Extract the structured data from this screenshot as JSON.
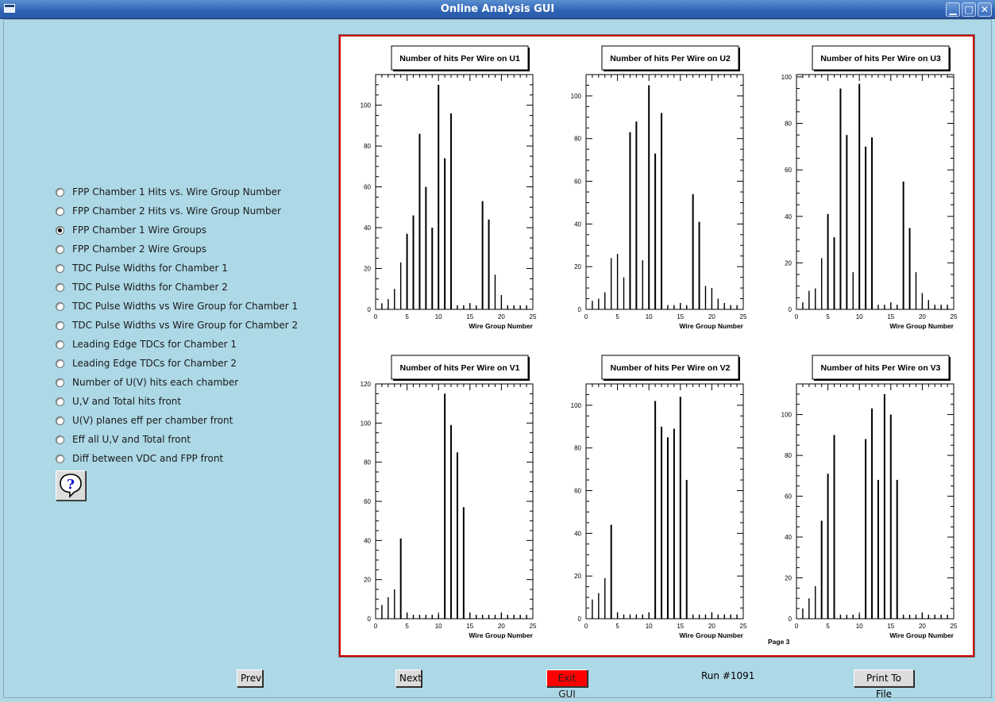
{
  "window": {
    "title": "Online Analysis GUI",
    "controls": {
      "minimize": "▁",
      "maximize": "□",
      "close": "✕"
    }
  },
  "options": [
    {
      "label": "FPP Chamber 1 Hits vs. Wire Group Number",
      "checked": false
    },
    {
      "label": "FPP Chamber 2 Hits vs. Wire Group Number",
      "checked": false
    },
    {
      "label": "FPP Chamber 1 Wire Groups",
      "checked": true
    },
    {
      "label": "FPP Chamber 2 Wire Groups",
      "checked": false
    },
    {
      "label": "TDC Pulse Widths for Chamber 1",
      "checked": false
    },
    {
      "label": "TDC Pulse Widths for Chamber 2",
      "checked": false
    },
    {
      "label": "TDC Pulse Widths vs Wire Group for Chamber 1",
      "checked": false
    },
    {
      "label": "TDC Pulse Widths vs Wire Group for Chamber 2",
      "checked": false
    },
    {
      "label": "Leading Edge TDCs for Chamber 1",
      "checked": false
    },
    {
      "label": "Leading Edge TDCs for Chamber 2",
      "checked": false
    },
    {
      "label": "Number of U(V) hits each chamber",
      "checked": false
    },
    {
      "label": "U,V and Total hits front",
      "checked": false
    },
    {
      "label": "U(V) planes eff per chamber front",
      "checked": false
    },
    {
      "label": "Eff all U,V and Total front",
      "checked": false
    },
    {
      "label": "Diff between VDC and FPP front",
      "checked": false
    }
  ],
  "help": {
    "icon": "help-question-icon",
    "glyph": "?"
  },
  "canvas": {
    "page_label": "Page 3"
  },
  "chart_data": [
    {
      "type": "bar",
      "title": "Number of hits Per Wire on U1",
      "xlabel": "Wire Group Number",
      "xlim": [
        0,
        25
      ],
      "ylim": [
        0,
        115
      ],
      "xticks": [
        0,
        5,
        10,
        15,
        20,
        25
      ],
      "yticks": [
        0,
        20,
        40,
        60,
        80,
        100
      ],
      "x": [
        1,
        2,
        3,
        4,
        5,
        6,
        7,
        8,
        9,
        10,
        11,
        12,
        13,
        14,
        15,
        16,
        17,
        18,
        19,
        20,
        21,
        22,
        23,
        24
      ],
      "values": [
        3,
        5,
        10,
        23,
        37,
        46,
        86,
        60,
        40,
        110,
        74,
        96,
        2,
        2,
        3,
        2,
        53,
        44,
        17,
        7,
        2,
        2,
        2,
        2
      ]
    },
    {
      "type": "bar",
      "title": "Number of hits Per Wire on U2",
      "xlabel": "Wire Group Number",
      "xlim": [
        0,
        25
      ],
      "ylim": [
        0,
        110
      ],
      "xticks": [
        0,
        5,
        10,
        15,
        20,
        25
      ],
      "yticks": [
        0,
        20,
        40,
        60,
        80,
        100
      ],
      "x": [
        1,
        2,
        3,
        4,
        5,
        6,
        7,
        8,
        9,
        10,
        11,
        12,
        13,
        14,
        15,
        16,
        17,
        18,
        19,
        20,
        21,
        22,
        23,
        24
      ],
      "values": [
        4,
        5,
        8,
        24,
        26,
        15,
        83,
        88,
        23,
        105,
        73,
        92,
        2,
        2,
        3,
        2,
        54,
        41,
        11,
        10,
        5,
        3,
        2,
        2
      ]
    },
    {
      "type": "bar",
      "title": "Number of hits Per Wire on U3",
      "xlabel": "Wire Group Number",
      "xlim": [
        0,
        25
      ],
      "ylim": [
        0,
        101
      ],
      "xticks": [
        0,
        5,
        10,
        15,
        20,
        25
      ],
      "yticks": [
        0,
        20,
        40,
        60,
        80,
        100
      ],
      "x": [
        1,
        2,
        3,
        4,
        5,
        6,
        7,
        8,
        9,
        10,
        11,
        12,
        13,
        14,
        15,
        16,
        17,
        18,
        19,
        20,
        21,
        22,
        23,
        24
      ],
      "values": [
        3,
        8,
        9,
        22,
        41,
        31,
        95,
        75,
        16,
        97,
        70,
        74,
        2,
        2,
        3,
        2,
        55,
        35,
        16,
        7,
        4,
        2,
        2,
        2
      ]
    },
    {
      "type": "bar",
      "title": "Number of hits Per Wire on V1",
      "xlabel": "Wire Group Number",
      "xlim": [
        0,
        25
      ],
      "ylim": [
        0,
        120
      ],
      "xticks": [
        0,
        5,
        10,
        15,
        20,
        25
      ],
      "yticks": [
        0,
        20,
        40,
        60,
        80,
        100,
        120
      ],
      "x": [
        1,
        2,
        3,
        4,
        5,
        6,
        7,
        8,
        9,
        10,
        11,
        12,
        13,
        14,
        15,
        16,
        17,
        18,
        19,
        20,
        21,
        22,
        23,
        24
      ],
      "values": [
        7,
        11,
        15,
        41,
        3,
        2,
        2,
        2,
        2,
        2,
        115,
        99,
        85,
        57,
        3,
        2,
        2,
        2,
        2,
        3,
        2,
        2,
        2,
        2
      ]
    },
    {
      "type": "bar",
      "title": "Number of hits Per Wire on V2",
      "xlabel": "Wire Group Number",
      "xlim": [
        0,
        25
      ],
      "ylim": [
        0,
        110
      ],
      "xticks": [
        0,
        5,
        10,
        15,
        20,
        25
      ],
      "yticks": [
        0,
        20,
        40,
        60,
        80,
        100
      ],
      "x": [
        1,
        2,
        3,
        4,
        5,
        6,
        7,
        8,
        9,
        10,
        11,
        12,
        13,
        14,
        15,
        16,
        17,
        18,
        19,
        20,
        21,
        22,
        23,
        24
      ],
      "values": [
        9,
        12,
        19,
        44,
        3,
        2,
        2,
        2,
        2,
        3,
        102,
        90,
        85,
        89,
        104,
        65,
        2,
        2,
        2,
        3,
        2,
        2,
        2,
        2
      ]
    },
    {
      "type": "bar",
      "title": "Number of hits Per Wire on V3",
      "xlabel": "Wire Group Number",
      "xlim": [
        0,
        25
      ],
      "ylim": [
        0,
        115
      ],
      "xticks": [
        0,
        5,
        10,
        15,
        20,
        25
      ],
      "yticks": [
        0,
        20,
        40,
        60,
        80,
        100
      ],
      "x": [
        1,
        2,
        3,
        4,
        5,
        6,
        7,
        8,
        9,
        10,
        11,
        12,
        13,
        14,
        15,
        16,
        17,
        18,
        19,
        20,
        21,
        22,
        23,
        24
      ],
      "values": [
        5,
        10,
        16,
        48,
        71,
        90,
        2,
        2,
        2,
        2,
        88,
        103,
        68,
        110,
        100,
        68,
        2,
        2,
        2,
        3,
        2,
        2,
        2,
        2
      ]
    }
  ],
  "footer": {
    "prev_label": "Prev",
    "next_label": "Next",
    "exit_label": "Exit GUI",
    "run_label": "Run #1091",
    "print_label": "Print To File",
    "exit_color": "#ff0000"
  }
}
